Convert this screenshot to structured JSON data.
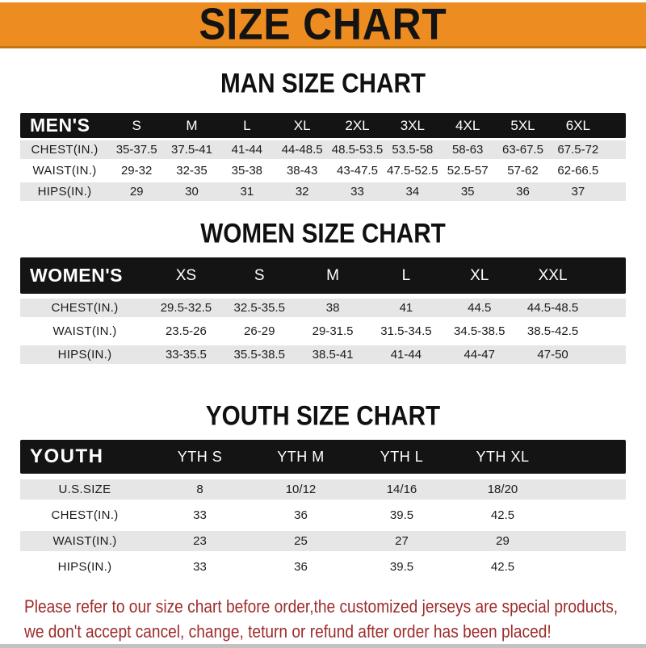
{
  "banner": {
    "title": "SIZE CHART"
  },
  "men": {
    "heading": "MAN SIZE CHART",
    "header_label": "MEN'S",
    "sizes": [
      "S",
      "M",
      "L",
      "XL",
      "2XL",
      "3XL",
      "4XL",
      "5XL",
      "6XL"
    ],
    "rows": [
      {
        "label": "CHEST(IN.)",
        "values": [
          "35-37.5",
          "37.5-41",
          "41-44",
          "44-48.5",
          "48.5-53.5",
          "53.5-58",
          "58-63",
          "63-67.5",
          "67.5-72"
        ]
      },
      {
        "label": "WAIST(IN.)",
        "values": [
          "29-32",
          "32-35",
          "35-38",
          "38-43",
          "43-47.5",
          "47.5-52.5",
          "52.5-57",
          "57-62",
          "62-66.5"
        ]
      },
      {
        "label": "HIPS(IN.)",
        "values": [
          "29",
          "30",
          "31",
          "32",
          "33",
          "34",
          "35",
          "36",
          "37"
        ]
      }
    ]
  },
  "women": {
    "heading": "WOMEN SIZE CHART",
    "header_label": "WOMEN'S",
    "sizes": [
      "XS",
      "S",
      "M",
      "L",
      "XL",
      "XXL"
    ],
    "rows": [
      {
        "label": "CHEST(IN.)",
        "values": [
          "29.5-32.5",
          "32.5-35.5",
          "38",
          "41",
          "44.5",
          "44.5-48.5"
        ]
      },
      {
        "label": "WAIST(IN.)",
        "values": [
          "23.5-26",
          "26-29",
          "29-31.5",
          "31.5-34.5",
          "34.5-38.5",
          "38.5-42.5"
        ]
      },
      {
        "label": "HIPS(IN.)",
        "values": [
          "33-35.5",
          "35.5-38.5",
          "38.5-41",
          "41-44",
          "44-47",
          "47-50"
        ]
      }
    ]
  },
  "youth": {
    "heading": "YOUTH SIZE CHART",
    "header_label": "YOUTH",
    "sizes": [
      "YTH S",
      "YTH M",
      "YTH L",
      "YTH XL"
    ],
    "rows": [
      {
        "label": "U.S.SIZE",
        "values": [
          "8",
          "10/12",
          "14/16",
          "18/20"
        ]
      },
      {
        "label": "CHEST(IN.)",
        "values": [
          "33",
          "36",
          "39.5",
          "42.5"
        ]
      },
      {
        "label": "WAIST(IN.)",
        "values": [
          "23",
          "25",
          "27",
          "29"
        ]
      },
      {
        "label": "HIPS(IN.)",
        "values": [
          "33",
          "36",
          "39.5",
          "42.5"
        ]
      }
    ]
  },
  "footer": {
    "line1": "Please refer to our size chart before order,the customized jerseys are special products,",
    "line2": "we don't accept cancel, change, teturn or refund after order has been placed!"
  },
  "colors": {
    "banner_orange": "#ED8C21",
    "table_header_black": "#141414",
    "row_gray": "#E6E6E6",
    "footer_red": "#9E2B2B",
    "page_bg": "#FFFFFF"
  }
}
